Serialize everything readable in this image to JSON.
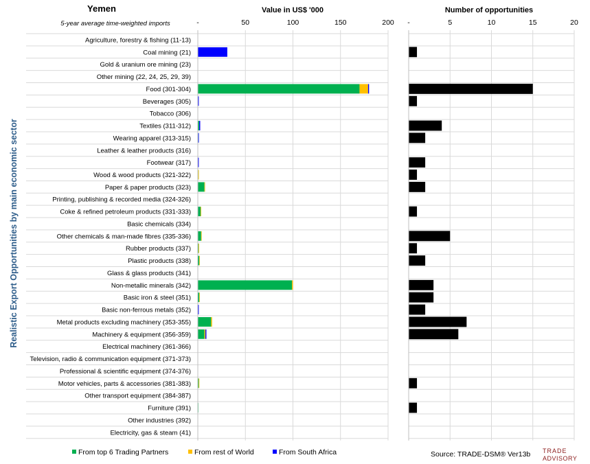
{
  "header": {
    "country": "Yemen",
    "subtitle": "5-year average time-weighted imports",
    "left_axis_title": "Value in US$ '000",
    "right_axis_title": "Number of opportunities",
    "y_axis_title": "Realistic Export Opportunities by main economic sector"
  },
  "footer": {
    "legend": [
      {
        "label": "From top 6 Trading Partners",
        "color": "#00b050"
      },
      {
        "label": "From rest of World",
        "color": "#ffc000"
      },
      {
        "label": "From South Africa",
        "color": "#0000ff"
      }
    ],
    "source": "Source: TRADE-DSM®  Ver13b",
    "logo_line1": "TRADE",
    "logo_line2": "ADVISORY"
  },
  "chart_data": [
    {
      "type": "bar",
      "orientation": "horizontal",
      "stacked": true,
      "title": "Value in US$ '000",
      "xlim": [
        0,
        200
      ],
      "ticks": [
        "-",
        "50",
        "100",
        "150",
        "200"
      ],
      "grid": true,
      "legend_position": "bottom",
      "categories": [
        "Agriculture, forestry & fishing (11-13)",
        "Coal mining (21)",
        "Gold & uranium ore mining (23)",
        "Other mining (22, 24, 25, 29, 39)",
        "Food (301-304)",
        "Beverages (305)",
        "Tobacco (306)",
        "Textiles (311-312)",
        "Wearing apparel (313-315)",
        "Leather & leather products (316)",
        "Footwear (317)",
        "Wood & wood products (321-322)",
        "Paper & paper products (323)",
        "Printing, publishing & recorded media (324-326)",
        "Coke & refined petroleum products (331-333)",
        "Basic chemicals (334)",
        "Other chemicals & man-made fibres (335-336)",
        "Rubber products (337)",
        "Plastic products (338)",
        "Glass & glass products (341)",
        "Non-metallic minerals (342)",
        "Basic iron & steel (351)",
        "Basic non-ferrous metals (352)",
        "Metal products excluding machinery (353-355)",
        "Machinery & equipment (356-359)",
        "Electrical machinery (361-366)",
        "Television, radio & communication equipment (371-373)",
        "Professional & scientific equipment (374-376)",
        "Motor vehicles, parts & accessories (381-383)",
        "Other transport equipment (384-387)",
        "Furniture (391)",
        "Other industries (392)",
        "Electricity, gas & steam (41)"
      ],
      "series": [
        {
          "name": "From top 6 Trading Partners",
          "color": "#00b050",
          "values": [
            0,
            0,
            0,
            0,
            170,
            0,
            0,
            1.5,
            0.5,
            0,
            0,
            0.5,
            7,
            0,
            3,
            0,
            3.5,
            0.8,
            1.5,
            0,
            99,
            1.5,
            0,
            14,
            7,
            0,
            0,
            0,
            1,
            0,
            0.5,
            0,
            0
          ]
        },
        {
          "name": "From rest of World",
          "color": "#ffc000",
          "values": [
            0,
            0,
            0,
            0,
            9,
            0,
            0,
            0,
            0,
            0,
            0,
            0.5,
            0.5,
            0,
            0.5,
            0,
            0.5,
            0.5,
            0.5,
            0,
            1,
            0.5,
            0,
            1,
            1,
            0,
            0,
            0,
            0.5,
            0,
            0,
            0,
            0
          ]
        },
        {
          "name": "From South Africa",
          "color": "#0000ff",
          "values": [
            0,
            31,
            0,
            0,
            1,
            1,
            0,
            1,
            0.3,
            0,
            1,
            0,
            0,
            0,
            0,
            0,
            0,
            0,
            0,
            0,
            0,
            0,
            1,
            0,
            1,
            0,
            0,
            0,
            0,
            0,
            0,
            0,
            0
          ]
        }
      ]
    },
    {
      "type": "bar",
      "orientation": "horizontal",
      "title": "Number of opportunities",
      "xlim": [
        0,
        20
      ],
      "ticks": [
        "-",
        "5",
        "10",
        "15",
        "20"
      ],
      "grid": true,
      "color": "#000000",
      "values": [
        0,
        1,
        0,
        0,
        15,
        1,
        0,
        4,
        2,
        0,
        2,
        1,
        2,
        0,
        1,
        0,
        5,
        1,
        2,
        0,
        3,
        3,
        2,
        7,
        6,
        0,
        0,
        0,
        1,
        0,
        1,
        0,
        0
      ]
    }
  ]
}
